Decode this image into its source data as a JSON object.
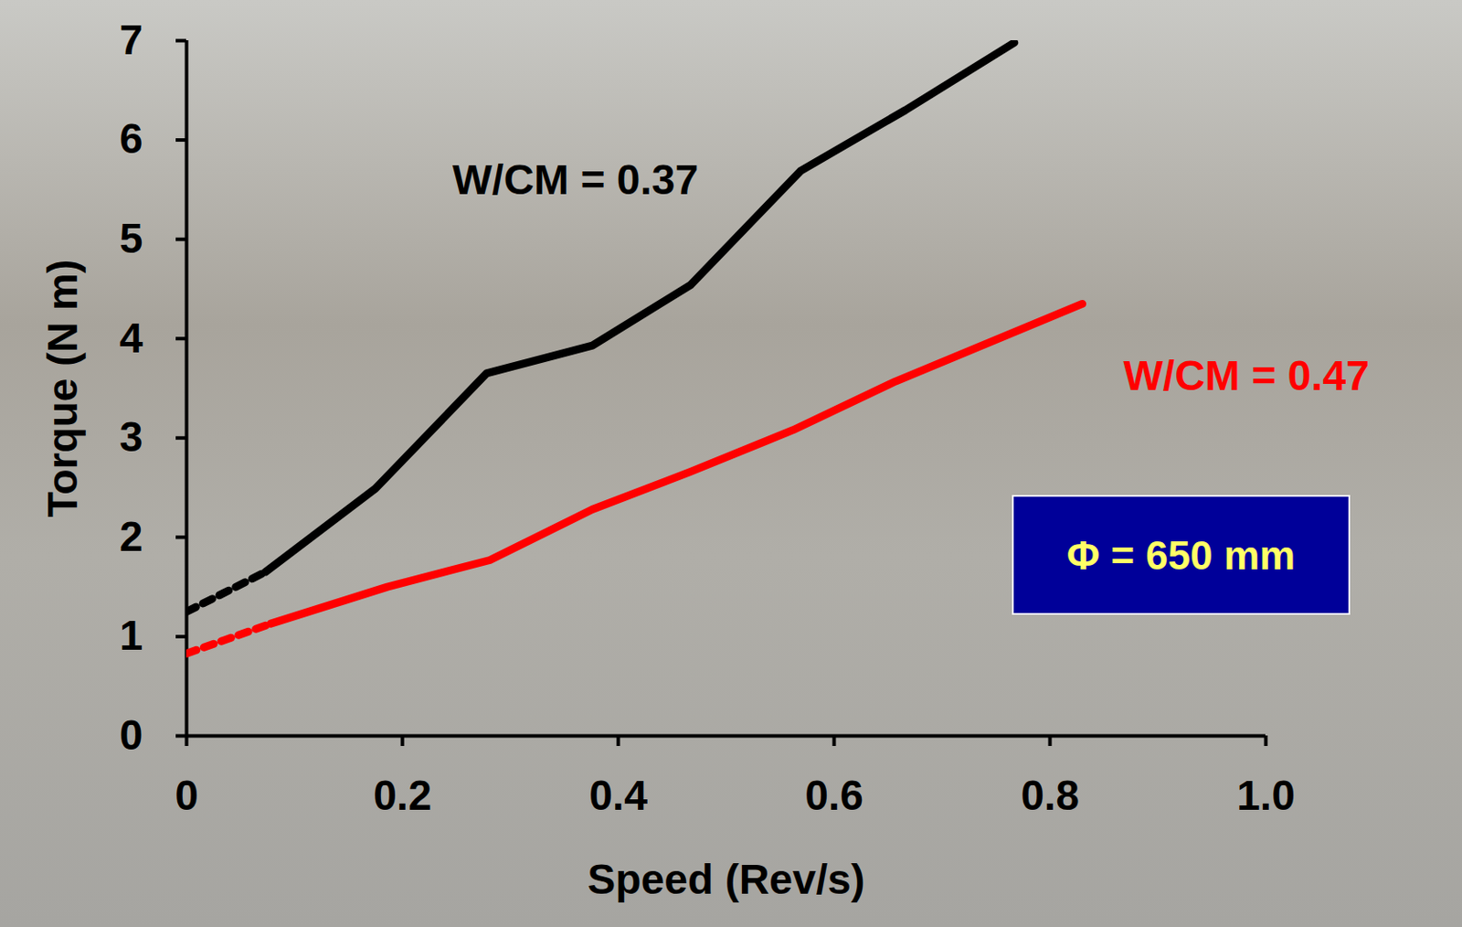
{
  "chart_data": {
    "type": "line",
    "xlabel": "Speed (Rev/s)",
    "ylabel": "Torque (N m)",
    "xlim": [
      0,
      1
    ],
    "ylim": [
      0,
      7
    ],
    "xticks": [
      0,
      0.2,
      0.4,
      0.6,
      0.8,
      {
        "value": 1,
        "label": "1.0"
      }
    ],
    "yticks": [
      0,
      1,
      2,
      3,
      4,
      5,
      6,
      7
    ],
    "grid": false,
    "series": [
      {
        "name": "W/CM = 0.37",
        "color": "#000000",
        "line_style": "solid",
        "x": [
          0.073,
          0.175,
          0.278,
          0.376,
          0.467,
          0.569,
          0.666,
          0.767
        ],
        "values": [
          1.65,
          2.49,
          3.65,
          3.93,
          4.54,
          5.69,
          6.3,
          6.98
        ]
      },
      {
        "color": "#000000",
        "line_style": "dotted",
        "x": [
          0,
          0.073
        ],
        "values": [
          1.25,
          1.65
        ]
      },
      {
        "name": "W/CM = 0.47",
        "color": "#ff0000",
        "line_style": "solid",
        "x": [
          0.078,
          0.186,
          0.281,
          0.376,
          0.467,
          0.562,
          0.657,
          0.83
        ],
        "values": [
          1.13,
          1.5,
          1.77,
          2.28,
          2.66,
          3.08,
          3.57,
          4.35
        ]
      },
      {
        "color": "#ff0000",
        "line_style": "dotted",
        "x": [
          0,
          0.078
        ],
        "values": [
          0.83,
          1.13
        ]
      }
    ],
    "annotations": [
      {
        "text": "Φ = 650 mm"
      }
    ]
  }
}
